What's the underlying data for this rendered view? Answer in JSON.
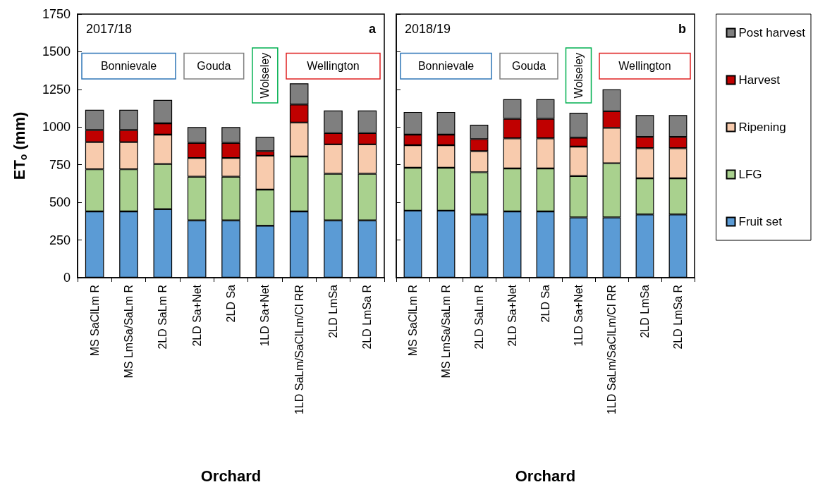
{
  "chart_data": [
    {
      "type": "bar",
      "stacked": true,
      "ylabel": "ET$_{o}$ (mm)",
      "xlabel": "Orchard",
      "annotations": [
        "2017/18",
        "a",
        "Bonnievale",
        "Gouda",
        "Wolseley",
        "Wellington"
      ],
      "categories": [
        "MS SaClLm R",
        "MS LmSa/SaLm R",
        "2LD SaLm R",
        "2LD Sa+Net",
        "2LD Sa",
        "1LD Sa+Net",
        "1LD SaLm/SaClLm/Cl RR",
        "2LD LmSa",
        "2LD LmSa R"
      ],
      "ylim": [
        0,
        1750
      ],
      "yticks": [
        0,
        250,
        500,
        750,
        1000,
        1250,
        1500,
        1750
      ],
      "grid": false,
      "series": [
        {
          "color": "#5b9bd5",
          "values": [
            440,
            440,
            455,
            380,
            380,
            345,
            440,
            380,
            380
          ]
        },
        {
          "color": "#a9d18e",
          "values": [
            280,
            280,
            300,
            290,
            290,
            240,
            365,
            310,
            310
          ]
        },
        {
          "color": "#f8cbad",
          "values": [
            180,
            180,
            195,
            125,
            125,
            225,
            225,
            195,
            195
          ]
        },
        {
          "color": "#c00000",
          "values": [
            80,
            80,
            75,
            100,
            100,
            30,
            120,
            75,
            75
          ]
        },
        {
          "color": "#7f7f7f",
          "values": [
            135,
            135,
            155,
            105,
            105,
            95,
            140,
            150,
            150
          ]
        }
      ]
    },
    {
      "type": "bar",
      "stacked": true,
      "xlabel": "Orchard",
      "annotations": [
        "2018/19",
        "b",
        "Bonnievale",
        "Gouda",
        "Wolseley",
        "Wellington"
      ],
      "legend": "right",
      "tick_labels": "x",
      "categories": [
        "MS SaClLm R",
        "MS LmSa/SaLm R",
        "2LD SaLm R",
        "2LD Sa+Net",
        "2LD Sa",
        "1LD Sa+Net",
        "1LD SaLm/SaClLm/Cl RR",
        "2LD LmSa",
        "2LD LmSa R"
      ],
      "ylim": [
        0,
        1750
      ],
      "yticks": [
        0,
        250,
        500,
        750,
        1000,
        1250,
        1500,
        1750
      ],
      "grid": false,
      "series": [
        {
          "name": "Fruit set",
          "color": "#5b9bd5",
          "values": [
            445,
            445,
            420,
            440,
            440,
            400,
            400,
            420,
            420
          ]
        },
        {
          "name": "LFG",
          "color": "#a9d18e",
          "values": [
            285,
            285,
            280,
            285,
            285,
            275,
            360,
            240,
            240
          ]
        },
        {
          "name": "Ripening",
          "color": "#f8cbad",
          "values": [
            150,
            150,
            140,
            200,
            200,
            195,
            235,
            200,
            200
          ]
        },
        {
          "name": "Harvest",
          "color": "#c00000",
          "values": [
            70,
            70,
            80,
            130,
            130,
            60,
            110,
            75,
            75
          ]
        },
        {
          "name": "Post harvest",
          "color": "#7f7f7f",
          "values": [
            150,
            150,
            95,
            130,
            130,
            165,
            145,
            145,
            145
          ]
        }
      ]
    }
  ]
}
